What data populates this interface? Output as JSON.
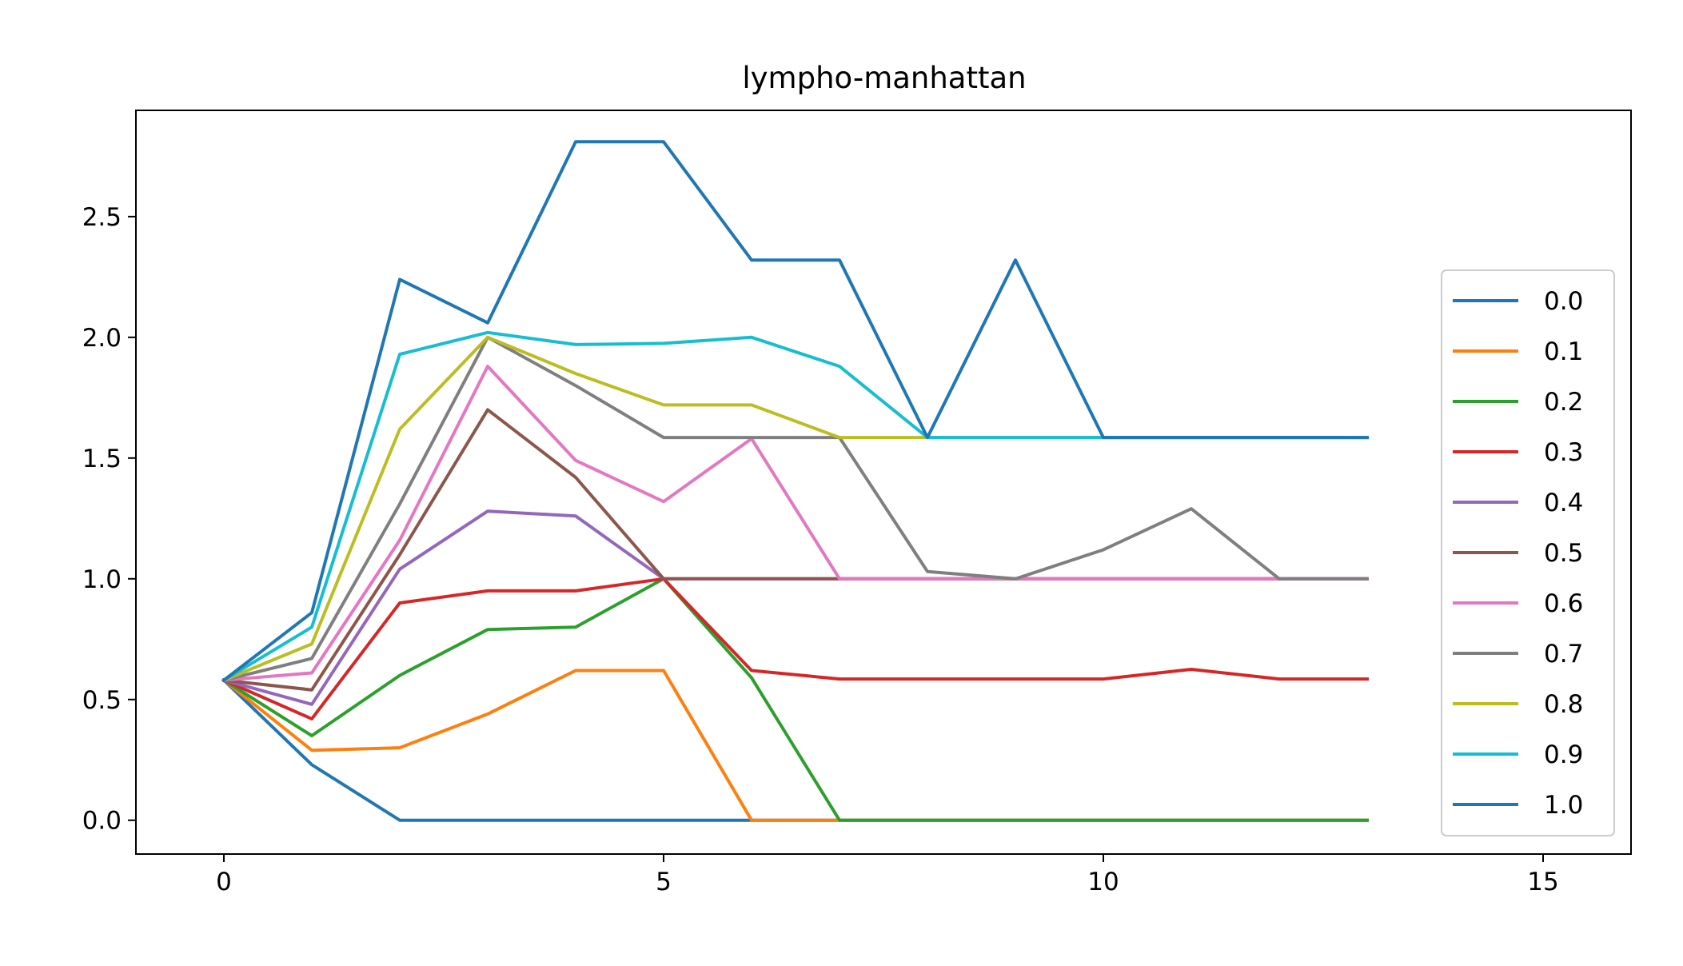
{
  "chart_data": {
    "type": "line",
    "title": "lympho-manhattan",
    "xlabel": "",
    "ylabel": "",
    "xlim": [
      -1,
      16
    ],
    "ylim": [
      -0.14,
      2.94
    ],
    "xticks": [
      0,
      5,
      10,
      15
    ],
    "xtick_labels": [
      "0",
      "5",
      "10",
      "15"
    ],
    "yticks": [
      0.0,
      0.5,
      1.0,
      1.5,
      2.0,
      2.5
    ],
    "ytick_labels": [
      "0.0",
      "0.5",
      "1.0",
      "1.5",
      "2.0",
      "2.5"
    ],
    "grid": false,
    "legend_position": "right",
    "x": [
      0,
      1,
      2,
      3,
      4,
      5,
      6,
      7,
      8,
      9,
      10,
      11,
      12,
      13
    ],
    "series": [
      {
        "name": "0.0",
        "color": "#1f77b4",
        "values": [
          0.58,
          0.23,
          0.0,
          0.0,
          0.0,
          0.0,
          0.0,
          0.0,
          0.0,
          0.0,
          0.0,
          0.0,
          0.0,
          0.0
        ]
      },
      {
        "name": "0.1",
        "color": "#ff7f0e",
        "values": [
          0.58,
          0.29,
          0.3,
          0.44,
          0.62,
          0.62,
          0.0,
          0.0,
          0.0,
          0.0,
          0.0,
          0.0,
          0.0,
          0.0
        ]
      },
      {
        "name": "0.2",
        "color": "#2ca02c",
        "values": [
          0.58,
          0.35,
          0.6,
          0.79,
          0.8,
          1.0,
          0.59,
          0.0,
          0.0,
          0.0,
          0.0,
          0.0,
          0.0,
          0.0
        ]
      },
      {
        "name": "0.3",
        "color": "#d62728",
        "values": [
          0.58,
          0.42,
          0.9,
          0.95,
          0.95,
          1.0,
          0.62,
          0.585,
          0.585,
          0.585,
          0.585,
          0.625,
          0.585,
          0.585
        ]
      },
      {
        "name": "0.4",
        "color": "#9467bd",
        "values": [
          0.58,
          0.48,
          1.04,
          1.28,
          1.26,
          1.0,
          1.0,
          1.0,
          1.0,
          1.0,
          1.0,
          1.0,
          1.0,
          1.0
        ]
      },
      {
        "name": "0.5",
        "color": "#8c564b",
        "values": [
          0.58,
          0.54,
          1.1,
          1.7,
          1.42,
          1.0,
          1.0,
          1.0,
          1.0,
          1.0,
          1.0,
          1.0,
          1.0,
          1.0
        ]
      },
      {
        "name": "0.6",
        "color": "#e377c2",
        "values": [
          0.58,
          0.61,
          1.16,
          1.88,
          1.49,
          1.32,
          1.58,
          1.0,
          1.0,
          1.0,
          1.0,
          1.0,
          1.0,
          1.0
        ]
      },
      {
        "name": "0.7",
        "color": "#7f7f7f",
        "values": [
          0.58,
          0.67,
          1.31,
          2.0,
          1.8,
          1.585,
          1.585,
          1.585,
          1.03,
          1.0,
          1.12,
          1.29,
          1.0,
          1.0
        ]
      },
      {
        "name": "0.8",
        "color": "#bcbd22",
        "values": [
          0.58,
          0.73,
          1.62,
          2.0,
          1.85,
          1.72,
          1.72,
          1.585,
          1.585,
          1.585,
          1.585,
          1.585,
          1.585,
          1.585
        ]
      },
      {
        "name": "0.9",
        "color": "#17becf",
        "values": [
          0.58,
          0.8,
          1.93,
          2.02,
          1.97,
          1.975,
          2.0,
          1.88,
          1.585,
          1.585,
          1.585,
          1.585,
          1.585,
          1.585
        ]
      },
      {
        "name": "1.0",
        "color": "#1f77b4",
        "values": [
          0.58,
          0.86,
          2.24,
          2.06,
          2.81,
          2.81,
          2.32,
          2.32,
          1.585,
          2.32,
          1.585,
          1.585,
          1.585,
          1.585
        ]
      }
    ]
  }
}
